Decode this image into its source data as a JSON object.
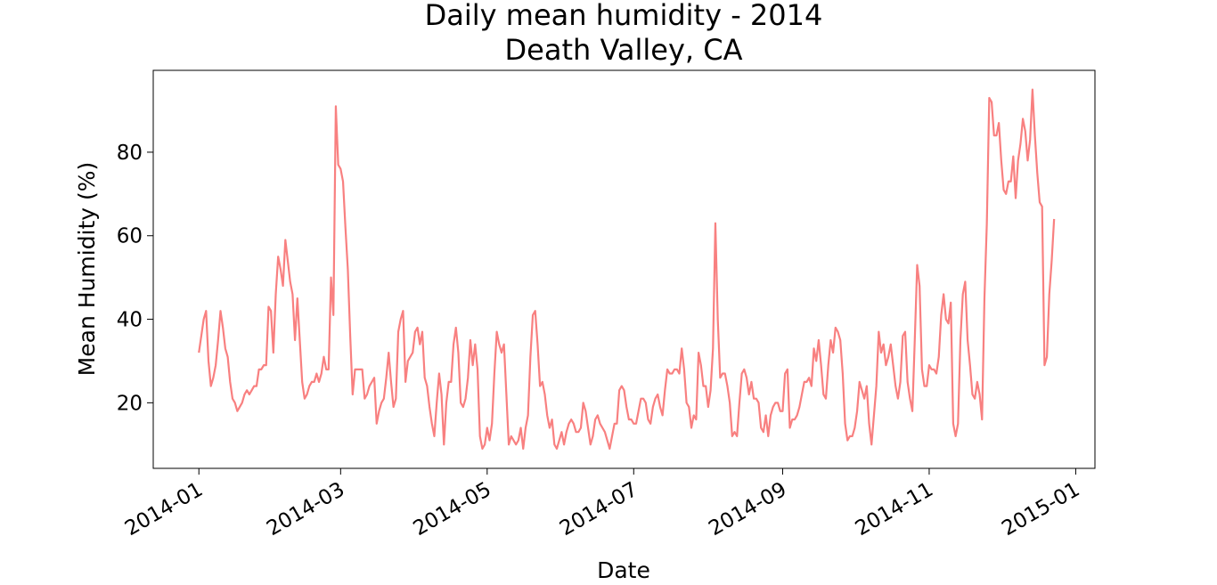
{
  "chart_data": {
    "type": "line",
    "title": "Daily mean humidity - 2014",
    "subtitle": "Death Valley, CA",
    "xlabel": "Date",
    "ylabel": "Mean Humidity (%)",
    "xlim": [
      "2013-12-13",
      "2015-01-09"
    ],
    "ylim": [
      4.3,
      99.6
    ],
    "x_ticks": [
      "2014-01",
      "2014-03",
      "2014-05",
      "2014-07",
      "2014-09",
      "2014-11",
      "2015-01"
    ],
    "x_tick_dates": [
      "2014-01-01",
      "2014-03-01",
      "2014-05-01",
      "2014-07-01",
      "2014-09-01",
      "2014-11-01",
      "2015-01-01"
    ],
    "y_ticks": [
      20,
      40,
      60,
      80
    ],
    "grid": false,
    "legend": "none",
    "line_color": "#f88080",
    "series": [
      {
        "start_date": "2014-01-01",
        "step_days": 1,
        "values": [
          32,
          36,
          40,
          42,
          30,
          24,
          26,
          29,
          35,
          42,
          38,
          33,
          31,
          25,
          21,
          20,
          18,
          19,
          20,
          22,
          23,
          22,
          23,
          24,
          24,
          28,
          28,
          29,
          29,
          43,
          42,
          32,
          46,
          55,
          52,
          48,
          59,
          54,
          49,
          46,
          35,
          45,
          35,
          25,
          21,
          22,
          24,
          25,
          25,
          27,
          25,
          27,
          31,
          28,
          28,
          50,
          41,
          91,
          77,
          76,
          73,
          62,
          52,
          36,
          22,
          28,
          28,
          28,
          28,
          21,
          22,
          24,
          25,
          26,
          15,
          18,
          20,
          21,
          26,
          32,
          25,
          19,
          21,
          37,
          40,
          42,
          25,
          30,
          31,
          32,
          37,
          38,
          34,
          37,
          26,
          24,
          19,
          15,
          12,
          20,
          27,
          22,
          10,
          20,
          25,
          25,
          34,
          38,
          32,
          20,
          19,
          21,
          26,
          35,
          29,
          34,
          28,
          12,
          9,
          10,
          14,
          11,
          15,
          27,
          37,
          34,
          32,
          34,
          22,
          10,
          12,
          11,
          10,
          11,
          14,
          9,
          14,
          17,
          31,
          41,
          42,
          34,
          24,
          25,
          22,
          17,
          14,
          16,
          10,
          9,
          11,
          13,
          10,
          13,
          15,
          16,
          15,
          13,
          13,
          14,
          20,
          18,
          14,
          10,
          12,
          16,
          17,
          15,
          14,
          13,
          11,
          9,
          12,
          15,
          15,
          23,
          24,
          23,
          19,
          16,
          16,
          15,
          15,
          18,
          21,
          21,
          20,
          16,
          15,
          19,
          21,
          22,
          19,
          17,
          23,
          28,
          27,
          27,
          28,
          28,
          27,
          33,
          28,
          20,
          19,
          14,
          17,
          16,
          32,
          29,
          24,
          24,
          19,
          23,
          33,
          63,
          40,
          26,
          27,
          27,
          24,
          20,
          12,
          13,
          12,
          20,
          27,
          28,
          26,
          22,
          25,
          21,
          21,
          20,
          14,
          13,
          17,
          12,
          17,
          19,
          20,
          20,
          18,
          18,
          27,
          28,
          14,
          16,
          16,
          17,
          19,
          22,
          25,
          25,
          26,
          24,
          33,
          30,
          35,
          29,
          22,
          21,
          29,
          35,
          32,
          38,
          37,
          35,
          27,
          15,
          11,
          12,
          12,
          14,
          18,
          25,
          23,
          21,
          24,
          15,
          10,
          17,
          24,
          37,
          32,
          34,
          29,
          31,
          34,
          29,
          24,
          21,
          25,
          36,
          37,
          25,
          21,
          18,
          35,
          53,
          48,
          28,
          24,
          24,
          29,
          28,
          28,
          27,
          31,
          41,
          46,
          40,
          39,
          44,
          15,
          12,
          15,
          35,
          46,
          49,
          35,
          29,
          22,
          21,
          25,
          22,
          16,
          45,
          63,
          93,
          92,
          84,
          84,
          87,
          78,
          71,
          70,
          73,
          73,
          79,
          69,
          78,
          82,
          88,
          85,
          78,
          83,
          95,
          84,
          75,
          68,
          67,
          29,
          31,
          46,
          54,
          64
        ]
      }
    ]
  }
}
